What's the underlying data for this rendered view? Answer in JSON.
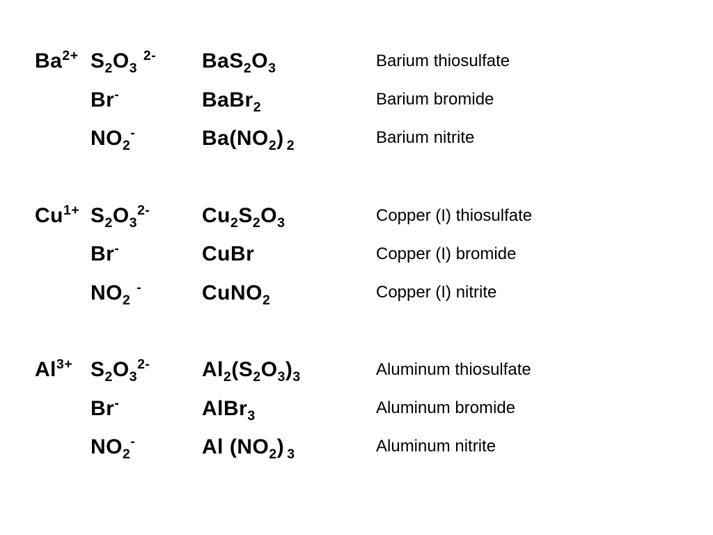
{
  "colors": {
    "text": "#000000",
    "background": "#ffffff"
  },
  "typography": {
    "ion_fontsize_pt": 23,
    "ion_fontweight": "bold",
    "formula_fontsize_pt": 23,
    "formula_fontweight": "bold",
    "name_fontsize_pt": 18,
    "name_fontweight": "normal",
    "font_family": "Arial"
  },
  "groups": [
    {
      "cation": "Ba",
      "cation_charge": "2+",
      "rows": [
        {
          "anion_base": "S",
          "anion_sub1": "2",
          "anion_mid": "O",
          "anion_sub2": "3",
          "anion_charge": "2-",
          "anion_charge_spaced": true,
          "formula_html": "BaS<sub>2</sub>O<sub>3</sub>",
          "name": "Barium thiosulfate"
        },
        {
          "anion_base": "Br",
          "anion_charge": "-",
          "formula_html": "BaBr<sub>2</sub>",
          "name": "Barium bromide"
        },
        {
          "anion_base": "NO",
          "anion_sub1": "2",
          "anion_charge": "-",
          "formula_html": "Ba(NO<sub>2</sub>)<sub class=\"subgap\">2</sub>",
          "name": "Barium nitrite"
        }
      ]
    },
    {
      "cation": "Cu",
      "cation_charge": "1+",
      "rows": [
        {
          "anion_base": "S",
          "anion_sub1": "2",
          "anion_mid": "O",
          "anion_sub2": "3",
          "anion_charge": "2-",
          "formula_html": "Cu<sub>2</sub>S<sub>2</sub>O<sub>3</sub>",
          "name": "Copper (I) thiosulfate"
        },
        {
          "anion_base": "Br",
          "anion_charge": "-",
          "formula_html": "CuBr",
          "name": "Copper (I) bromide"
        },
        {
          "anion_base": "NO",
          "anion_sub1": "2",
          "anion_charge": "-",
          "anion_charge_spaced": true,
          "formula_html": "CuNO<sub>2</sub>",
          "name": "Copper (I) nitrite"
        }
      ]
    },
    {
      "cation": "Al",
      "cation_charge": "3+",
      "rows": [
        {
          "anion_base": "S",
          "anion_sub1": "2",
          "anion_mid": "O",
          "anion_sub2": "3",
          "anion_charge": "2-",
          "formula_html": "Al<sub>2</sub>(S<sub>2</sub>O<sub>3</sub>)<sub>3</sub>",
          "name": "Aluminum thiosulfate"
        },
        {
          "anion_base": "Br",
          "anion_charge": "-",
          "formula_html": "AlBr<sub>3</sub>",
          "name": "Aluminum bromide"
        },
        {
          "anion_base": "NO",
          "anion_sub1": "2",
          "anion_charge": "-",
          "formula_html": "Al (NO<sub>2</sub>)<sub class=\"subgap\">3</sub>",
          "name": "Aluminum nitrite"
        }
      ]
    }
  ]
}
